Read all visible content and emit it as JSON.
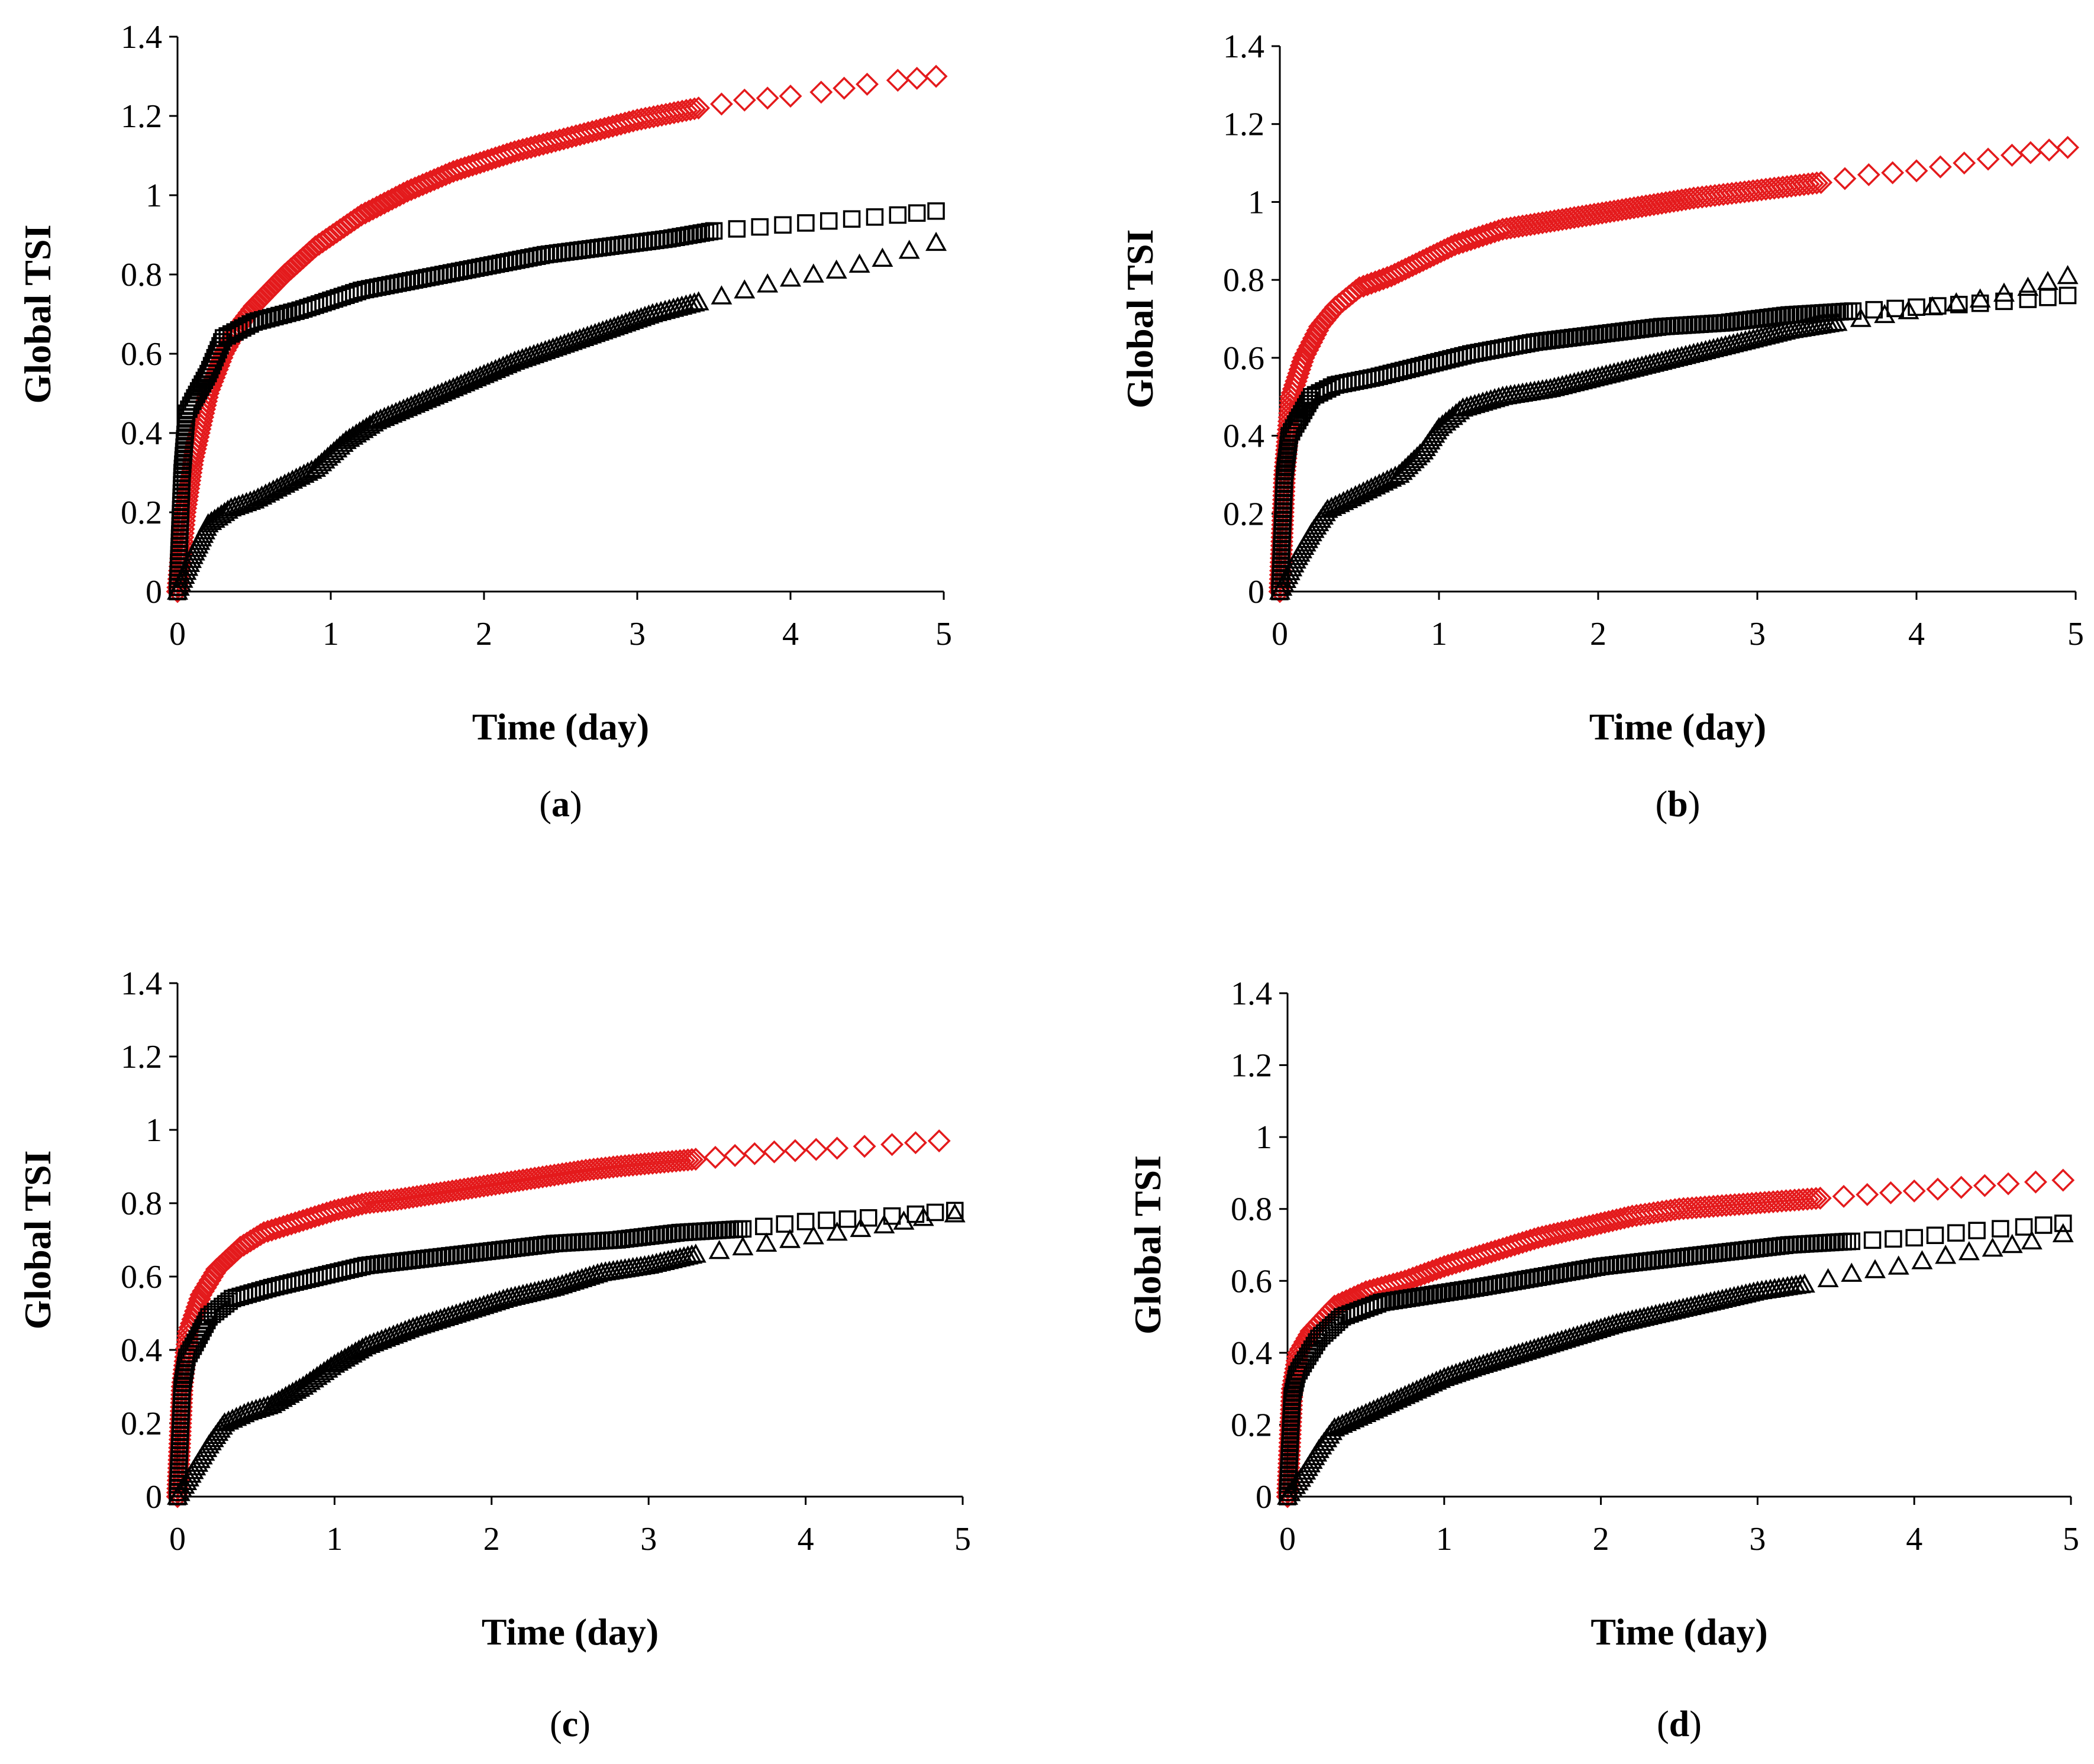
{
  "colors": {
    "red_series": "#e41a1c",
    "black_series": "#000000",
    "axis": "#000000"
  },
  "chart_data": [
    {
      "type": "scatter",
      "panel": "(a)",
      "label_letter": "a",
      "xlabel": "Time (day)",
      "ylabel": "Global TSI",
      "xlim": [
        0,
        5
      ],
      "ylim": [
        0,
        1.4
      ],
      "xticks": [
        "0",
        "1",
        "2",
        "3",
        "4",
        "5"
      ],
      "yticks": [
        "0",
        "0.2",
        "0.4",
        "0.6",
        "0.8",
        "1",
        "1.2",
        "1.4"
      ],
      "series": [
        {
          "name": "diamond",
          "marker": "diamond",
          "color": "#e41a1c",
          "x": [
            0,
            0.05,
            0.1,
            0.2,
            0.3,
            0.4,
            0.5,
            0.7,
            0.9,
            1.2,
            1.5,
            1.8,
            2.2,
            2.6,
            3.0,
            3.4,
            3.7,
            4.0,
            4.2,
            4.5,
            4.7,
            4.95
          ],
          "y": [
            0,
            0.2,
            0.33,
            0.5,
            0.6,
            0.67,
            0.72,
            0.8,
            0.87,
            0.95,
            1.01,
            1.06,
            1.11,
            1.15,
            1.19,
            1.22,
            1.24,
            1.25,
            1.26,
            1.28,
            1.29,
            1.3
          ]
        },
        {
          "name": "square",
          "marker": "square",
          "color": "#000000",
          "x": [
            0,
            0.03,
            0.06,
            0.1,
            0.2,
            0.3,
            0.5,
            0.8,
            1.2,
            1.6,
            2.0,
            2.4,
            2.8,
            3.2,
            3.5,
            3.8,
            4.1,
            4.4,
            4.7,
            4.95
          ],
          "y": [
            0,
            0.3,
            0.45,
            0.48,
            0.55,
            0.64,
            0.68,
            0.71,
            0.76,
            0.79,
            0.82,
            0.85,
            0.87,
            0.89,
            0.91,
            0.92,
            0.93,
            0.94,
            0.95,
            0.96
          ]
        },
        {
          "name": "triangle",
          "marker": "triangle",
          "color": "#000000",
          "x": [
            0,
            0.1,
            0.2,
            0.35,
            0.5,
            0.7,
            0.9,
            1.1,
            1.3,
            1.6,
            1.9,
            2.2,
            2.5,
            2.8,
            3.1,
            3.4,
            3.7,
            4.0,
            4.3,
            4.6,
            4.95
          ],
          "y": [
            0,
            0.09,
            0.17,
            0.21,
            0.23,
            0.27,
            0.31,
            0.38,
            0.43,
            0.48,
            0.53,
            0.58,
            0.62,
            0.66,
            0.7,
            0.73,
            0.76,
            0.79,
            0.81,
            0.84,
            0.88
          ]
        }
      ]
    },
    {
      "type": "scatter",
      "panel": "(b)",
      "label_letter": "b",
      "xlabel": "Time (day)",
      "ylabel": "Global TSI",
      "xlim": [
        0,
        5
      ],
      "ylim": [
        0,
        1.4
      ],
      "xticks": [
        "0",
        "1",
        "2",
        "3",
        "4",
        "5"
      ],
      "yticks": [
        "0",
        "0.2",
        "0.4",
        "0.6",
        "0.8",
        "1",
        "1.2",
        "1.4"
      ],
      "series": [
        {
          "name": "diamond",
          "marker": "diamond",
          "color": "#e41a1c",
          "x": [
            0,
            0.03,
            0.07,
            0.15,
            0.25,
            0.35,
            0.5,
            0.7,
            0.9,
            1.1,
            1.4,
            1.7,
            2.0,
            2.3,
            2.6,
            3.0,
            3.4,
            3.7,
            4.0,
            4.3,
            4.6,
            4.95
          ],
          "y": [
            0,
            0.3,
            0.5,
            0.6,
            0.68,
            0.73,
            0.78,
            0.81,
            0.85,
            0.89,
            0.93,
            0.95,
            0.97,
            0.99,
            1.01,
            1.03,
            1.05,
            1.07,
            1.08,
            1.1,
            1.12,
            1.14
          ]
        },
        {
          "name": "square",
          "marker": "square",
          "color": "#000000",
          "x": [
            0,
            0.03,
            0.06,
            0.1,
            0.2,
            0.35,
            0.6,
            0.9,
            1.2,
            1.6,
            2.0,
            2.4,
            2.8,
            3.2,
            3.6,
            4.0,
            4.4,
            4.7,
            4.95
          ],
          "y": [
            0,
            0.3,
            0.4,
            0.43,
            0.5,
            0.53,
            0.55,
            0.58,
            0.61,
            0.64,
            0.66,
            0.68,
            0.69,
            0.71,
            0.72,
            0.73,
            0.74,
            0.75,
            0.76
          ]
        },
        {
          "name": "triangle",
          "marker": "triangle",
          "color": "#000000",
          "x": [
            0,
            0.1,
            0.2,
            0.3,
            0.45,
            0.6,
            0.75,
            0.9,
            1.0,
            1.15,
            1.4,
            1.7,
            2.0,
            2.3,
            2.6,
            2.9,
            3.2,
            3.5,
            3.8,
            4.1,
            4.4,
            4.7,
            4.95
          ],
          "y": [
            0,
            0.08,
            0.15,
            0.21,
            0.24,
            0.27,
            0.3,
            0.36,
            0.42,
            0.47,
            0.5,
            0.52,
            0.55,
            0.58,
            0.61,
            0.64,
            0.67,
            0.69,
            0.71,
            0.73,
            0.75,
            0.78,
            0.81
          ]
        }
      ]
    },
    {
      "type": "scatter",
      "panel": "(c)",
      "label_letter": "c",
      "xlabel": "Time (day)",
      "ylabel": "Global TSI",
      "xlim": [
        0,
        5
      ],
      "ylim": [
        0,
        1.4
      ],
      "xticks": [
        "0",
        "1",
        "2",
        "3",
        "4",
        "5"
      ],
      "yticks": [
        "0",
        "0.2",
        "0.4",
        "0.6",
        "0.8",
        "1",
        "1.2",
        "1.4"
      ],
      "series": [
        {
          "name": "diamond",
          "marker": "diamond",
          "color": "#e41a1c",
          "x": [
            0,
            0.03,
            0.07,
            0.15,
            0.25,
            0.4,
            0.55,
            0.7,
            0.85,
            1.0,
            1.2,
            1.4,
            1.7,
            2.0,
            2.3,
            2.6,
            2.8,
            3.05,
            3.3,
            3.55,
            3.8,
            4.2,
            4.55,
            4.85
          ],
          "y": [
            0,
            0.3,
            0.45,
            0.55,
            0.62,
            0.68,
            0.72,
            0.74,
            0.76,
            0.78,
            0.8,
            0.81,
            0.83,
            0.85,
            0.87,
            0.89,
            0.9,
            0.91,
            0.92,
            0.93,
            0.94,
            0.95,
            0.96,
            0.97
          ]
        },
        {
          "name": "square",
          "marker": "square",
          "color": "#000000",
          "x": [
            0,
            0.03,
            0.06,
            0.1,
            0.2,
            0.35,
            0.6,
            0.9,
            1.2,
            1.6,
            2.0,
            2.4,
            2.8,
            3.2,
            3.6,
            4.0,
            4.4,
            4.7,
            4.95
          ],
          "y": [
            0,
            0.3,
            0.38,
            0.41,
            0.49,
            0.54,
            0.57,
            0.6,
            0.63,
            0.65,
            0.67,
            0.69,
            0.7,
            0.72,
            0.73,
            0.75,
            0.76,
            0.77,
            0.78
          ]
        },
        {
          "name": "triangle",
          "marker": "triangle",
          "color": "#000000",
          "x": [
            0,
            0.1,
            0.2,
            0.3,
            0.45,
            0.6,
            0.8,
            1.0,
            1.2,
            1.5,
            1.8,
            2.1,
            2.4,
            2.7,
            3.0,
            3.3,
            3.6,
            3.9,
            4.2,
            4.5,
            4.75,
            4.95
          ],
          "y": [
            0,
            0.07,
            0.14,
            0.2,
            0.23,
            0.25,
            0.3,
            0.36,
            0.41,
            0.46,
            0.5,
            0.54,
            0.57,
            0.61,
            0.63,
            0.66,
            0.68,
            0.7,
            0.72,
            0.74,
            0.76,
            0.77
          ]
        }
      ]
    },
    {
      "type": "scatter",
      "panel": "(d)",
      "label_letter": "d",
      "xlabel": "Time (day)",
      "ylabel": "Global TSI",
      "xlim": [
        0,
        5
      ],
      "ylim": [
        0,
        1.4
      ],
      "xticks": [
        "0",
        "1",
        "2",
        "3",
        "4",
        "5"
      ],
      "yticks": [
        "0",
        "0.2",
        "0.4",
        "0.6",
        "0.8",
        "1",
        "1.2",
        "1.4"
      ],
      "series": [
        {
          "name": "diamond",
          "marker": "diamond",
          "color": "#e41a1c",
          "x": [
            0,
            0.03,
            0.07,
            0.15,
            0.3,
            0.5,
            0.75,
            1.0,
            1.3,
            1.6,
            1.9,
            2.2,
            2.5,
            2.8,
            3.1,
            3.4,
            3.7,
            4.0,
            4.3,
            4.6,
            4.95
          ],
          "y": [
            0,
            0.3,
            0.4,
            0.46,
            0.53,
            0.57,
            0.6,
            0.64,
            0.68,
            0.72,
            0.75,
            0.78,
            0.8,
            0.81,
            0.82,
            0.83,
            0.84,
            0.85,
            0.86,
            0.87,
            0.88
          ]
        },
        {
          "name": "square",
          "marker": "square",
          "color": "#000000",
          "x": [
            0,
            0.03,
            0.06,
            0.1,
            0.2,
            0.35,
            0.6,
            0.9,
            1.2,
            1.6,
            2.0,
            2.4,
            2.8,
            3.2,
            3.6,
            4.0,
            4.4,
            4.7,
            4.95
          ],
          "y": [
            0,
            0.28,
            0.34,
            0.37,
            0.44,
            0.5,
            0.54,
            0.56,
            0.58,
            0.61,
            0.64,
            0.66,
            0.68,
            0.7,
            0.71,
            0.72,
            0.74,
            0.75,
            0.76
          ]
        },
        {
          "name": "triangle",
          "marker": "triangle",
          "color": "#000000",
          "x": [
            0,
            0.1,
            0.2,
            0.3,
            0.45,
            0.6,
            0.8,
            1.0,
            1.2,
            1.5,
            1.8,
            2.1,
            2.4,
            2.7,
            3.0,
            3.3,
            3.6,
            3.9,
            4.2,
            4.5,
            4.75,
            4.95
          ],
          "y": [
            0,
            0.06,
            0.13,
            0.19,
            0.22,
            0.25,
            0.29,
            0.33,
            0.36,
            0.4,
            0.44,
            0.48,
            0.51,
            0.54,
            0.57,
            0.59,
            0.62,
            0.64,
            0.67,
            0.69,
            0.71,
            0.73
          ]
        }
      ]
    }
  ]
}
